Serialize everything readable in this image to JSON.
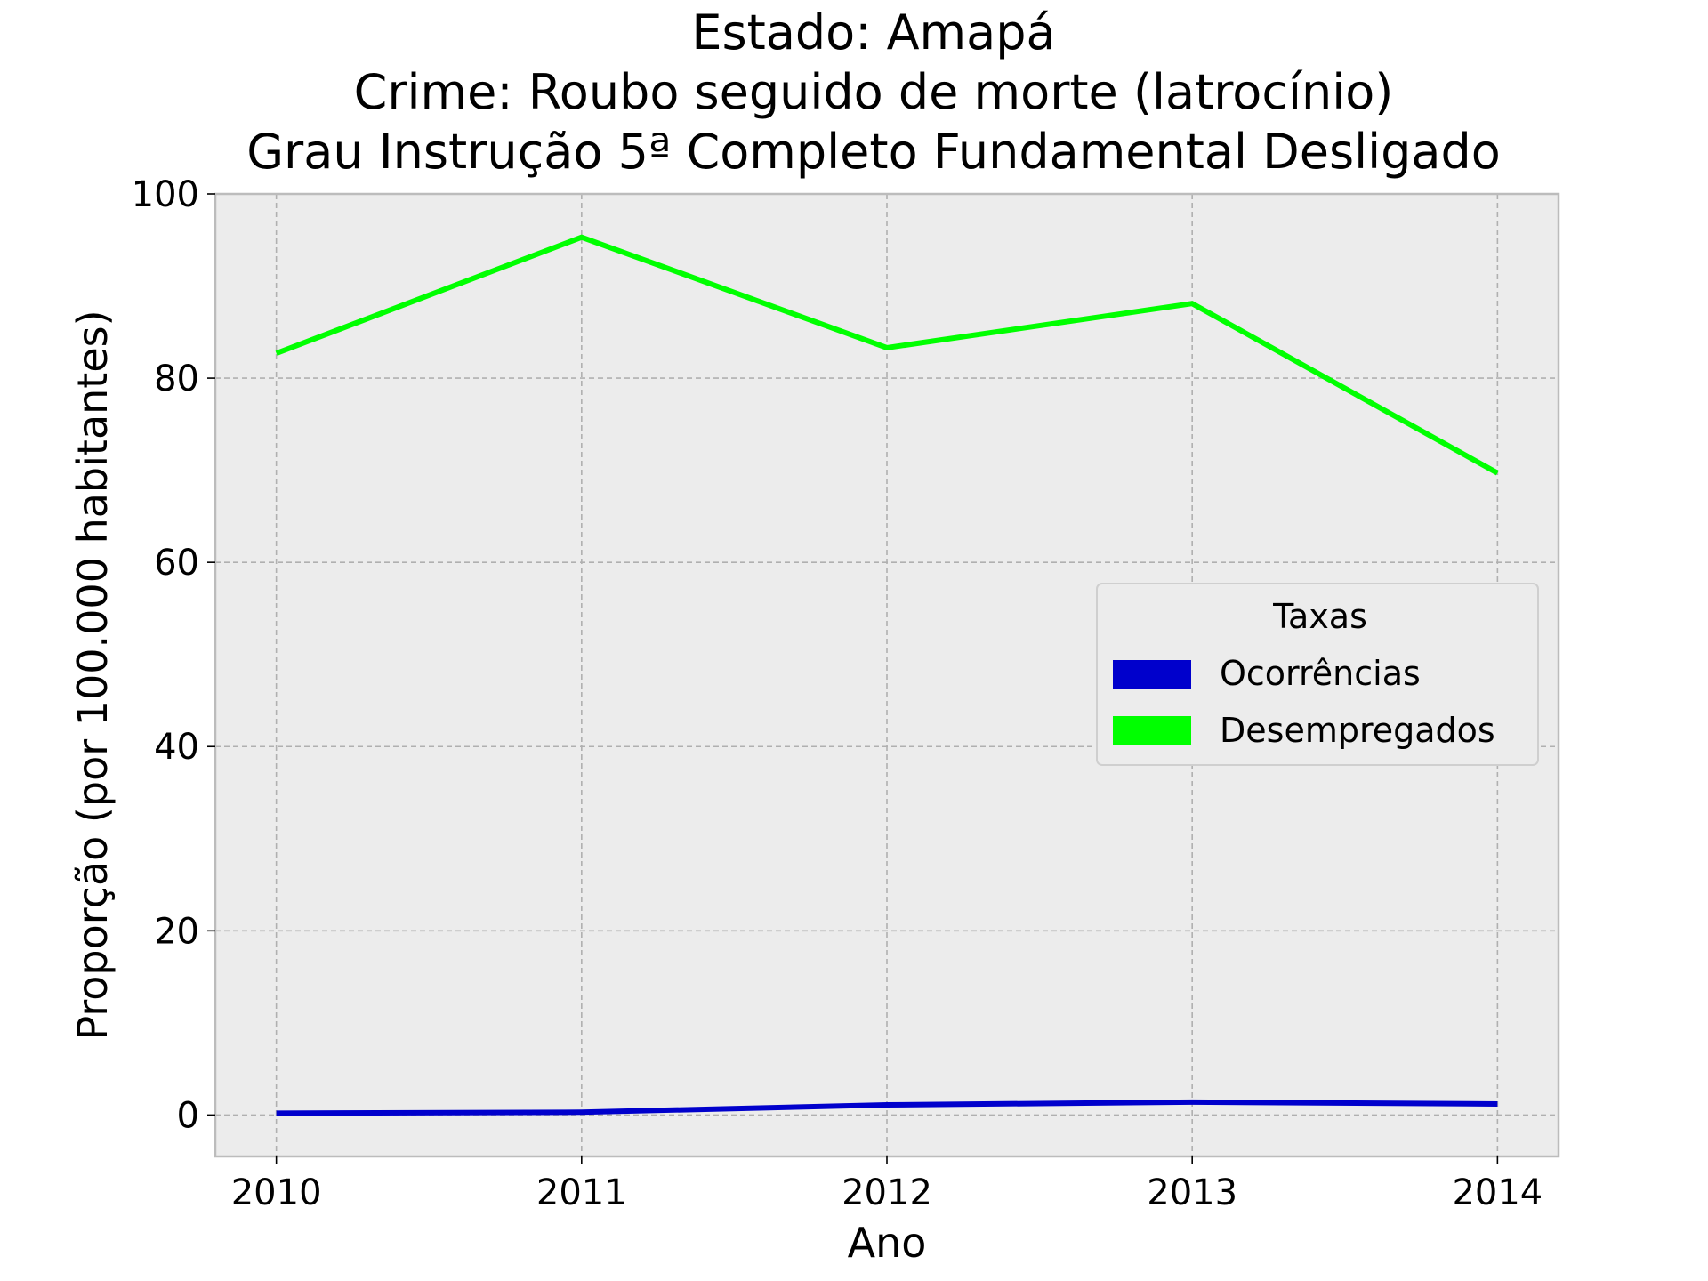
{
  "chart_data": {
    "type": "line",
    "title_lines": [
      "Estado: Amapá",
      "Crime: Roubo seguido de morte (latrocínio)",
      "Grau Instrução  5ª Completo Fundamental   Desligado"
    ],
    "xlabel": "Ano",
    "ylabel": "Proporção (por 100.000 habitantes)",
    "x": [
      2010,
      2011,
      2012,
      2013,
      2014
    ],
    "x_tick_labels": [
      "2010",
      "2011",
      "2012",
      "2013",
      "2014"
    ],
    "y_ticks": [
      0,
      20,
      40,
      60,
      80,
      100
    ],
    "y_tick_labels": [
      "0",
      "20",
      "40",
      "60",
      "80",
      "100"
    ],
    "xlim": [
      2009.8,
      2014.2
    ],
    "ylim": [
      -4.5,
      100
    ],
    "grid": true,
    "legend": {
      "title": "Taxas",
      "placement": "center-right"
    },
    "series": [
      {
        "name": "Ocorrências",
        "color": "#0000cc",
        "values": [
          0.2,
          0.3,
          1.1,
          1.4,
          1.2
        ]
      },
      {
        "name": "Desempregados",
        "color": "#00ff00",
        "values": [
          82.7,
          95.3,
          83.3,
          88.1,
          69.7
        ]
      }
    ],
    "colors": {
      "plot_background": "#ececec",
      "grid": "#b0b0b0",
      "axes_edge": "#bcbcbc"
    }
  }
}
